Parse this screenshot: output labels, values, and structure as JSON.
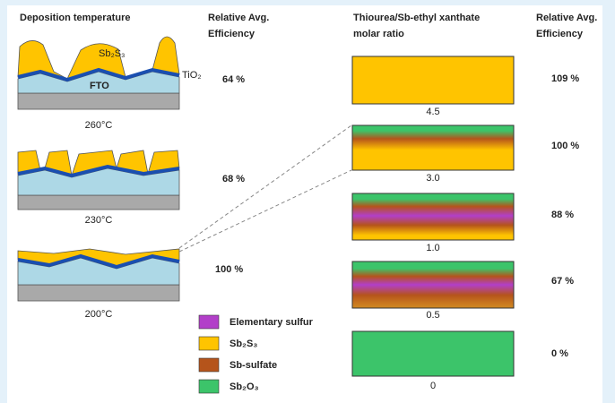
{
  "left": {
    "heading": "Deposition temperature",
    "efficiency_heading": [
      "Relative Avg.",
      "Efficiency"
    ],
    "layer_labels": {
      "absorber": "Sb₂S₃",
      "substrate": "FTO",
      "buffer": "TiO₂"
    },
    "samples": [
      {
        "temperature": "260°C",
        "efficiency": "64 %"
      },
      {
        "temperature": "230°C",
        "efficiency": "68 %"
      },
      {
        "temperature": "200°C",
        "efficiency": "100 %"
      }
    ]
  },
  "right": {
    "heading": [
      "Thiourea/Sb-ethyl xanthate",
      "molar ratio"
    ],
    "efficiency_heading": [
      "Relative Avg.",
      "Efficiency"
    ],
    "samples": [
      {
        "ratio": "4.5",
        "efficiency": "109 %"
      },
      {
        "ratio": "3.0",
        "efficiency": "100 %"
      },
      {
        "ratio": "1.0",
        "efficiency": "88 %"
      },
      {
        "ratio": "0.5",
        "efficiency": "67 %"
      },
      {
        "ratio": "0",
        "efficiency": "0 %"
      }
    ]
  },
  "legend": [
    "Elementary sulfur",
    "Sb₂S₃",
    "Sb-sulfate",
    "Sb₂O₃"
  ]
}
